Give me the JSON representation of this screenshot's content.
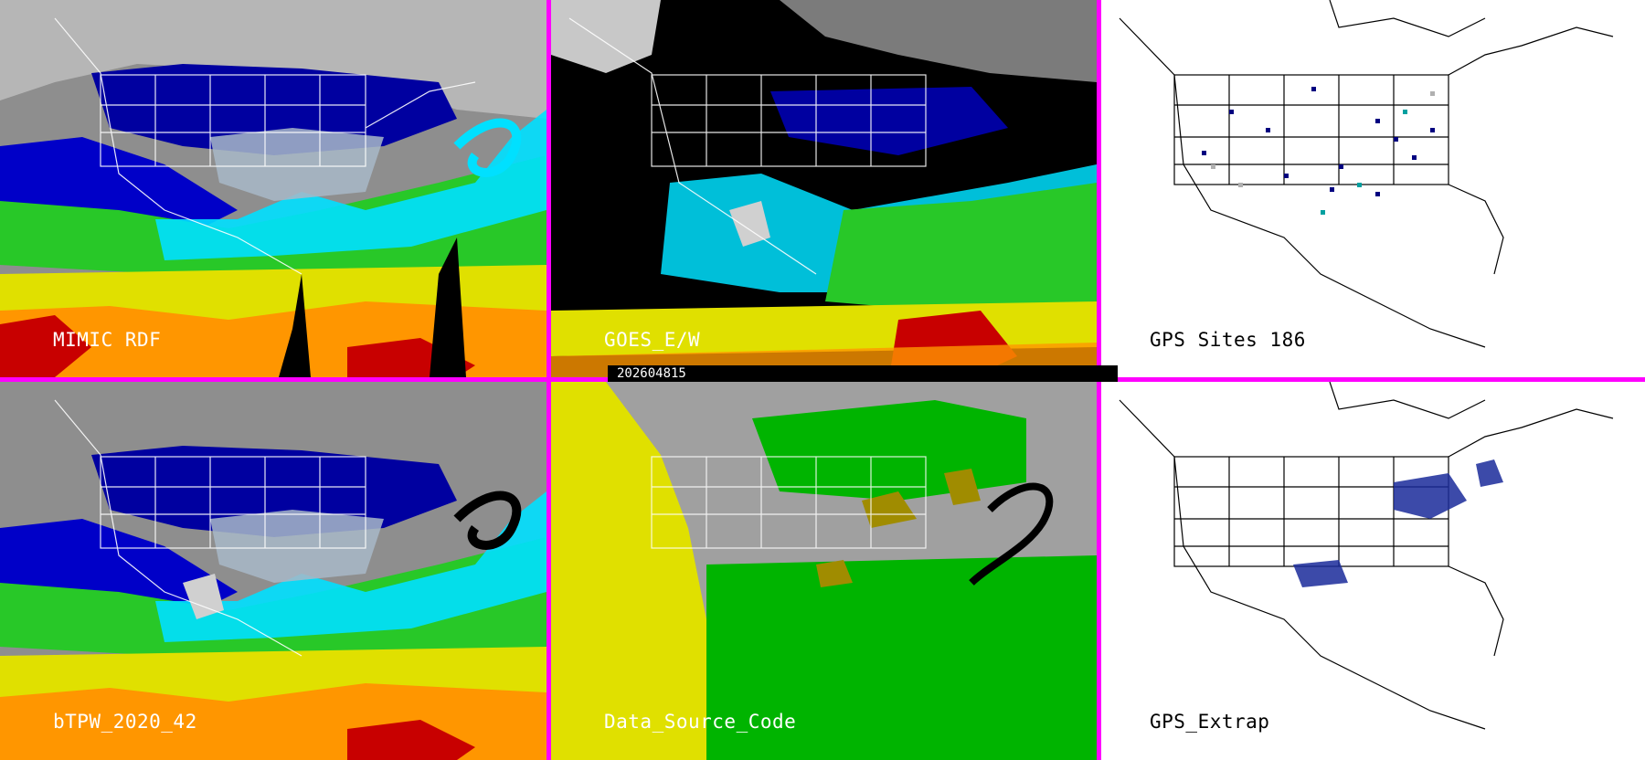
{
  "panels": [
    {
      "id": "mimic",
      "label": "MIMIC RDF",
      "theme": "tpw"
    },
    {
      "id": "goes",
      "label": "GOES_E/W",
      "theme": "goes"
    },
    {
      "id": "gps-sites",
      "label": "GPS Sites   186",
      "theme": "gps"
    },
    {
      "id": "btpw",
      "label": "bTPW_2020_42",
      "theme": "tpw"
    },
    {
      "id": "source",
      "label": "Data_Source_Code",
      "theme": "source"
    },
    {
      "id": "gps-extrap",
      "label": "GPS_Extrap",
      "theme": "gpsx"
    }
  ],
  "timestamp": "202604815",
  "colors": {
    "divider": "#ff00ff",
    "tpw_scale": [
      "#9a9a9a",
      "#0000a0",
      "#0028ff",
      "#00e0ff",
      "#28c828",
      "#00b400",
      "#e0e000",
      "#ff9600",
      "#c80000"
    ],
    "source_scale": [
      "#a0a0a0",
      "#e0e000",
      "#00b400",
      "#a08c00"
    ],
    "gps_sites": [
      "#000080",
      "#00a0a0",
      "#b0b0b0"
    ]
  }
}
